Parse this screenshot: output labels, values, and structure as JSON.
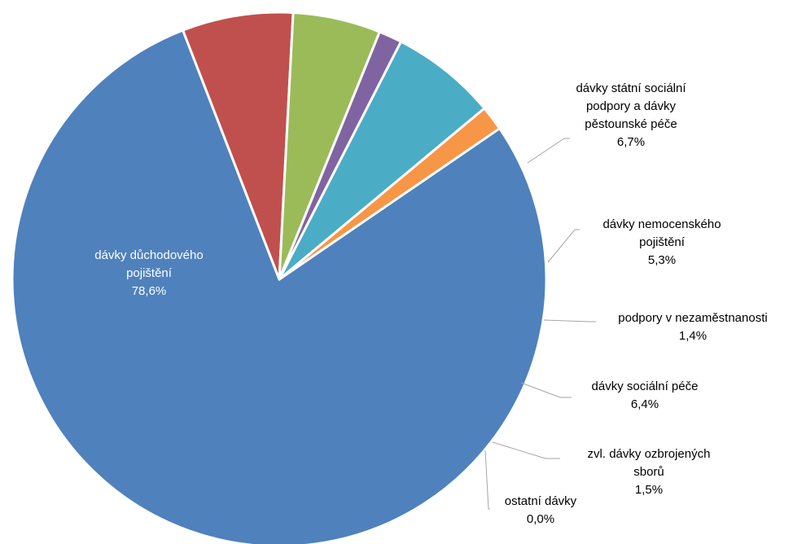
{
  "chart_data": {
    "type": "pie",
    "title": "",
    "slices": [
      {
        "name": "dávky důchodového pojištění",
        "lines": [
          "dávky důchodového",
          "pojištění",
          "78,6%"
        ],
        "value": 78.6,
        "color": "#4F81BD",
        "label_inside": true
      },
      {
        "name": "dávky státní sociální podpory a dávky pěstounské péče",
        "lines": [
          "dávky státní sociální",
          "podpory a dávky",
          "pěstounské péče",
          "6,7%"
        ],
        "value": 6.7,
        "color": "#C0504D",
        "label_inside": false
      },
      {
        "name": "dávky nemocenského pojištění",
        "lines": [
          "dávky nemocenského",
          "pojištění",
          "5,3%"
        ],
        "value": 5.3,
        "color": "#9BBB59",
        "label_inside": false
      },
      {
        "name": "podpory v nezaměstnanosti",
        "lines": [
          "podpory v nezaměstnanosti",
          "1,4%"
        ],
        "value": 1.4,
        "color": "#8064A2",
        "label_inside": false
      },
      {
        "name": "dávky sociální péče",
        "lines": [
          "dávky sociální péče",
          "6,4%"
        ],
        "value": 6.4,
        "color": "#4BACC6",
        "label_inside": false
      },
      {
        "name": "zvl. dávky ozbrojených sborů",
        "lines": [
          "zvl. dávky ozbrojených",
          "sborů",
          "1,5%"
        ],
        "value": 1.5,
        "color": "#F79646",
        "label_inside": false
      },
      {
        "name": "ostatní dávky",
        "lines": [
          "ostatní dávky",
          "0,0%"
        ],
        "value": 0.0,
        "color": "#2C4D75",
        "label_inside": false
      }
    ]
  }
}
